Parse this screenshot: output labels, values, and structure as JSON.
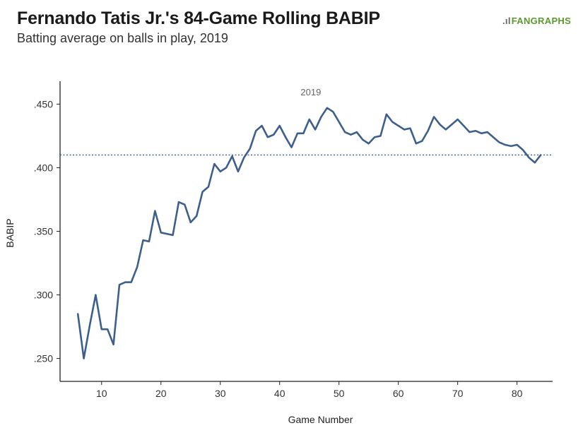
{
  "header": {
    "title": "Fernando Tatis Jr.'s 84-Game Rolling BABIP",
    "subtitle": "Batting average on balls in play, 2019",
    "logo_text": "FANGRAPHS"
  },
  "colors": {
    "line": "#3d5f8e",
    "reference": "#3d5f8e",
    "axis": "#222222",
    "logo": "#5a9a2e"
  },
  "chart_data": {
    "type": "line",
    "title": "Fernando Tatis Jr.'s 84-Game Rolling BABIP",
    "subtitle": "Batting average on balls in play, 2019",
    "xlabel": "Game Number",
    "ylabel": "BABIP",
    "xlim": [
      3,
      86
    ],
    "ylim": [
      0.232,
      0.468
    ],
    "xticks": [
      10,
      20,
      30,
      40,
      50,
      60,
      70,
      80
    ],
    "xtick_labels": [
      "10",
      "20",
      "30",
      "40",
      "50",
      "60",
      "70",
      "80"
    ],
    "yticks": [
      0.25,
      0.3,
      0.35,
      0.4,
      0.45
    ],
    "ytick_labels": [
      ".250",
      ".300",
      ".350",
      ".400",
      ".450"
    ],
    "grid": false,
    "reference_line": {
      "y": 0.41,
      "style": "dotted"
    },
    "series": [
      {
        "name": "2019",
        "x": [
          6,
          7,
          8,
          9,
          10,
          11,
          12,
          13,
          14,
          15,
          16,
          17,
          18,
          19,
          20,
          21,
          22,
          23,
          24,
          25,
          26,
          27,
          28,
          29,
          30,
          31,
          32,
          33,
          34,
          35,
          36,
          37,
          38,
          39,
          40,
          41,
          42,
          43,
          44,
          45,
          46,
          47,
          48,
          49,
          50,
          51,
          52,
          53,
          54,
          55,
          56,
          57,
          58,
          59,
          60,
          61,
          62,
          63,
          64,
          65,
          66,
          67,
          68,
          69,
          70,
          71,
          72,
          73,
          74,
          75,
          76,
          77,
          78,
          79,
          80,
          81,
          82,
          83,
          84
        ],
        "values": [
          0.285,
          0.25,
          0.276,
          0.3,
          0.273,
          0.273,
          0.261,
          0.308,
          0.31,
          0.31,
          0.322,
          0.343,
          0.342,
          0.366,
          0.349,
          0.348,
          0.347,
          0.373,
          0.371,
          0.357,
          0.362,
          0.381,
          0.385,
          0.403,
          0.397,
          0.4,
          0.409,
          0.397,
          0.408,
          0.415,
          0.429,
          0.433,
          0.424,
          0.426,
          0.433,
          0.424,
          0.416,
          0.427,
          0.427,
          0.438,
          0.43,
          0.44,
          0.447,
          0.444,
          0.436,
          0.428,
          0.426,
          0.428,
          0.422,
          0.419,
          0.424,
          0.425,
          0.442,
          0.436,
          0.433,
          0.43,
          0.431,
          0.419,
          0.421,
          0.429,
          0.44,
          0.434,
          0.43,
          0.434,
          0.438,
          0.433,
          0.428,
          0.429,
          0.427,
          0.428,
          0.424,
          0.42,
          0.418,
          0.417,
          0.418,
          0.414,
          0.408,
          0.404,
          0.41
        ]
      }
    ]
  }
}
